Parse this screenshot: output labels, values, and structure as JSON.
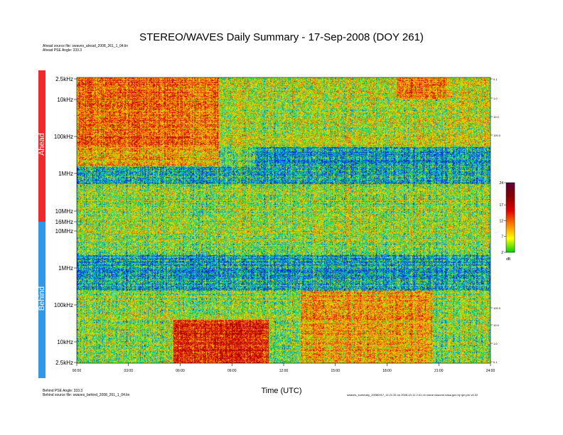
{
  "title": "STEREO/WAVES Daily Summary - 17-Sep-2008 (DOY 261)",
  "ahead_meta": {
    "source_file": "Ahead source file: swaves_ahead_2008_261_1_04.lin",
    "pse_angle": "Ahead PSE Angle: 333.3"
  },
  "behind_meta": {
    "pse_angle": "Behind PSE Angle: 333.3",
    "source_file": "Behind source file: swaves_behind_2008_261_1_04.lin"
  },
  "footer_right": "swaves_summary_20080917_11:21:33 on 2008-10-11 2:41 on crane.nascom.nasa.gov by rjm.pro v4.02",
  "chart_data": {
    "type": "heatmap",
    "title": "STEREO/WAVES Daily Summary - 17-Sep-2008 (DOY 261)",
    "xlabel": "Time (UTC)",
    "x_ticks": [
      "00:00",
      "03:00",
      "06:00",
      "09:00",
      "12:00",
      "15:00",
      "18:00",
      "21:00",
      "24:00"
    ],
    "panels": [
      {
        "name": "Ahead",
        "color": "#f02a2a",
        "y_ticks": [
          "2.5kHz",
          "10kHz",
          "100kHz",
          "1MHz",
          "10MHz",
          "16MHz"
        ],
        "right_ticks": [
          "0.1",
          "1.0",
          "10.0",
          "100.0"
        ]
      },
      {
        "name": "Behind",
        "color": "#2f98e8",
        "y_ticks": [
          "10MHz",
          "1MHz",
          "100kHz",
          "10kHz",
          "2.5kHz"
        ],
        "right_ticks": [
          "100.0",
          "10.0",
          "1.0",
          "0.1"
        ]
      }
    ],
    "colorbar": {
      "ticks": [
        "24",
        "17",
        "12",
        "7",
        "2"
      ],
      "unit": "dB",
      "range": [
        2,
        24
      ],
      "colors": [
        "#00d000",
        "#ffff00",
        "#ff8000",
        "#e00000",
        "#8b0000",
        "#5a0038"
      ]
    },
    "grid": false,
    "legend": "none"
  }
}
